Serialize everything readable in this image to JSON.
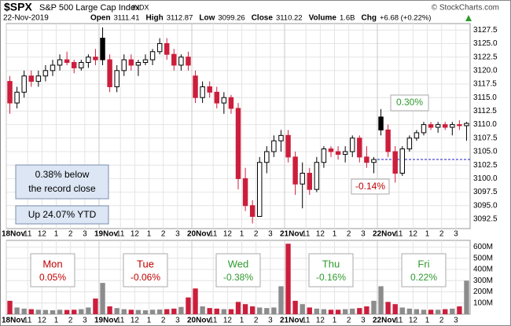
{
  "header": {
    "symbol": "$SPX",
    "name": "S&P 500 Large Cap Index",
    "exchange": "INDX",
    "date": "22-Nov-2019",
    "fields": [
      {
        "label": "Open",
        "value": "3111.41"
      },
      {
        "label": "High",
        "value": "3112.87"
      },
      {
        "label": "Low",
        "value": "3099.26"
      },
      {
        "label": "Close",
        "value": "3110.22"
      },
      {
        "label": "Volume",
        "value": "1.6B"
      },
      {
        "label": "Chg",
        "value": "+6.68 (+0.22%)"
      }
    ],
    "credit": "© StockCharts.com"
  },
  "chart_data": {
    "type": "candlestick",
    "ohlc": [
      [
        3118,
        3119,
        3112,
        3114
      ],
      [
        3114,
        3117,
        3113,
        3116
      ],
      [
        3116,
        3120,
        3115,
        3119
      ],
      [
        3119,
        3120,
        3117,
        3118
      ],
      [
        3118,
        3120,
        3117,
        3119
      ],
      [
        3119,
        3121,
        3118,
        3120
      ],
      [
        3120,
        3122,
        3119,
        3121
      ],
      [
        3121,
        3123,
        3120,
        3122
      ],
      [
        3122,
        3123.5,
        3121,
        3121.5
      ],
      [
        3121.5,
        3122,
        3119.5,
        3120.5
      ],
      [
        3120.5,
        3122,
        3120,
        3121.5
      ],
      [
        3121.5,
        3123,
        3120.5,
        3122.5
      ],
      [
        3122.5,
        3124,
        3121,
        3122
      ],
      [
        3126,
        3128,
        3121,
        3122
      ],
      [
        3122,
        3123,
        3116,
        3117
      ],
      [
        3117,
        3121,
        3116,
        3120
      ],
      [
        3120,
        3123,
        3119,
        3122
      ],
      [
        3122,
        3123,
        3120,
        3121
      ],
      [
        3121,
        3122,
        3119,
        3121.5
      ],
      [
        3121.5,
        3123,
        3121,
        3122
      ],
      [
        3122,
        3124,
        3121,
        3123.5
      ],
      [
        3123.5,
        3126,
        3123,
        3125
      ],
      [
        3125,
        3126,
        3122,
        3123
      ],
      [
        3123,
        3124,
        3120,
        3121
      ],
      [
        3121,
        3123,
        3120,
        3122.5
      ],
      [
        3122.5,
        3123.5,
        3120,
        3121
      ],
      [
        3119,
        3120,
        3114,
        3115
      ],
      [
        3115,
        3118,
        3114,
        3117
      ],
      [
        3117,
        3118,
        3115,
        3116
      ],
      [
        3116,
        3117,
        3113,
        3114
      ],
      [
        3114,
        3116,
        3112,
        3115
      ],
      [
        3115,
        3115.5,
        3112,
        3113
      ],
      [
        3113,
        3114,
        3098,
        3100
      ],
      [
        3100,
        3102,
        3094,
        3095
      ],
      [
        3095,
        3096,
        3091.7,
        3093
      ],
      [
        3093,
        3104,
        3093,
        3103
      ],
      [
        3103,
        3106,
        3101,
        3105
      ],
      [
        3105,
        3108,
        3104,
        3107
      ],
      [
        3107,
        3109,
        3105,
        3108
      ],
      [
        3108,
        3109,
        3103,
        3104
      ],
      [
        3104,
        3105,
        3097,
        3099
      ],
      [
        3099,
        3103,
        3094.5,
        3101
      ],
      [
        3101,
        3102,
        3097,
        3098
      ],
      [
        3098,
        3104,
        3097.5,
        3103
      ],
      [
        3103,
        3106,
        3102,
        3105.5
      ],
      [
        3105.5,
        3106,
        3104,
        3105
      ],
      [
        3105,
        3106,
        3103.5,
        3104.5
      ],
      [
        3104.5,
        3106,
        3103,
        3105
      ],
      [
        3105,
        3108,
        3104,
        3107.5
      ],
      [
        3107.5,
        3108,
        3103,
        3104
      ],
      [
        3104,
        3106,
        3102,
        3103
      ],
      [
        3103,
        3104,
        3101,
        3103.54
      ],
      [
        3111.41,
        3112.87,
        3108,
        3109
      ],
      [
        3109,
        3110,
        3104,
        3105
      ],
      [
        3105,
        3106,
        3099.26,
        3101
      ],
      [
        3101,
        3106,
        3100.5,
        3105.5
      ],
      [
        3105.5,
        3108,
        3105,
        3107.5
      ],
      [
        3107.5,
        3109,
        3107,
        3108.5
      ],
      [
        3108.5,
        3110.5,
        3108,
        3110
      ],
      [
        3110,
        3110.5,
        3109,
        3109.5
      ],
      [
        3109.5,
        3110.5,
        3108.5,
        3110
      ],
      [
        3110,
        3110.5,
        3109,
        3109.5
      ],
      [
        3109.5,
        3110.5,
        3108,
        3110
      ],
      [
        3110,
        3110.8,
        3109,
        3109.8
      ],
      [
        3109.8,
        3110.5,
        3107,
        3110.22
      ]
    ],
    "volume": {
      "values": [
        120,
        60,
        50,
        45,
        40,
        38,
        35,
        40,
        38,
        40,
        45,
        60,
        140,
        280,
        70,
        55,
        45,
        40,
        38,
        35,
        40,
        42,
        45,
        50,
        65,
        150,
        230,
        70,
        55,
        50,
        45,
        45,
        110,
        90,
        70,
        60,
        55,
        60,
        250,
        630,
        120,
        90,
        60,
        50,
        45,
        40,
        40,
        45,
        50,
        55,
        70,
        120,
        250,
        110,
        90,
        60,
        50,
        45,
        40,
        40,
        40,
        45,
        50,
        70,
        300
      ],
      "ylim": [
        0,
        660
      ],
      "yticks": [
        {
          "value": 100,
          "label": "100M"
        },
        {
          "value": 200,
          "label": "200M"
        },
        {
          "value": 300,
          "label": "300M"
        },
        {
          "value": 400,
          "label": "400M"
        },
        {
          "value": 500,
          "label": "500M"
        },
        {
          "value": 600,
          "label": "600M"
        }
      ]
    },
    "colors": {
      "up": "#000000",
      "down": "#cc1e3c",
      "volume": "#8c8c8c",
      "reference": "#1c1cc8"
    },
    "ylim": [
      3090.75,
      3128.7
    ],
    "yticks": [
      3092.5,
      {
        "value": 3095,
        "label": "3095.0"
      },
      3097.5,
      {
        "value": 3100,
        "label": "3100.0"
      },
      3102.5,
      {
        "value": 3105,
        "label": "3105.0"
      },
      3107.5,
      {
        "value": 3110,
        "label": "3110.0"
      },
      3112.5,
      {
        "value": 3115,
        "label": "3115.0"
      },
      3117.5,
      {
        "value": 3120,
        "label": "3120.0"
      },
      3122.5,
      {
        "value": 3125,
        "label": "3125.0"
      },
      3127.5
    ],
    "xlim": [
      0,
      32.5
    ],
    "xticks": [
      {
        "value": 0,
        "label": "18Nov"
      },
      {
        "value": 1.5,
        "label": "11"
      },
      {
        "value": 2.5,
        "label": "12"
      },
      {
        "value": 3.5,
        "label": "1"
      },
      {
        "value": 4.5,
        "label": "2"
      },
      {
        "value": 5.5,
        "label": "3"
      },
      {
        "value": 6.5,
        "label": "19Nov"
      },
      {
        "value": 8,
        "label": "11"
      },
      {
        "value": 9,
        "label": "12"
      },
      {
        "value": 10,
        "label": "1"
      },
      {
        "value": 11,
        "label": "2"
      },
      {
        "value": 12,
        "label": "3"
      },
      {
        "value": 13,
        "label": "20Nov"
      },
      {
        "value": 14.5,
        "label": "11"
      },
      {
        "value": 15.5,
        "label": "12"
      },
      {
        "value": 16.5,
        "label": "1"
      },
      {
        "value": 17.5,
        "label": "2"
      },
      {
        "value": 18.5,
        "label": "3"
      },
      {
        "value": 19.5,
        "label": "21Nov"
      },
      {
        "value": 21,
        "label": "11"
      },
      {
        "value": 22,
        "label": "12"
      },
      {
        "value": 23,
        "label": "1"
      },
      {
        "value": 24,
        "label": "2"
      },
      {
        "value": 25,
        "label": "3"
      },
      {
        "value": 26,
        "label": "22Nov"
      },
      {
        "value": 27.5,
        "label": "11"
      },
      {
        "value": 28.5,
        "label": "12"
      },
      {
        "value": 29.5,
        "label": "1"
      },
      {
        "value": 30.5,
        "label": "2"
      },
      {
        "value": 31.5,
        "label": "3"
      }
    ],
    "grid": true,
    "reference_line": {
      "value": 3103.54,
      "from": 26
    },
    "annotations": {
      "record": [
        "0.38% below",
        "the record close"
      ],
      "ytd": "Up 24.07% YTD",
      "high": "0.30%",
      "low": "-0.14%"
    },
    "day_labels": [
      {
        "day": "Mon",
        "change": "0.05%",
        "color": "#c00000"
      },
      {
        "day": "Tue",
        "change": "-0.06%",
        "color": "#c00000"
      },
      {
        "day": "Wed",
        "change": "-0.38%",
        "color": "#2e9a2e"
      },
      {
        "day": "Thu",
        "change": "-0.16%",
        "color": "#2e9a2e"
      },
      {
        "day": "Fri",
        "change": "0.22%",
        "color": "#2e9a2e"
      }
    ]
  }
}
